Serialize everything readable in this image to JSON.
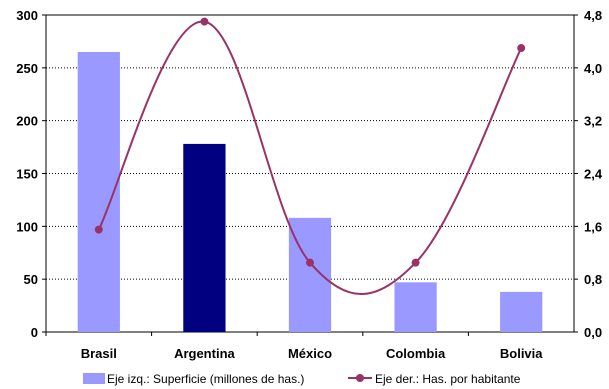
{
  "chart_data": {
    "type": "bar",
    "title": "",
    "categories": [
      "Brasil",
      "Argentina",
      "México",
      "Colombia",
      "Bolivia"
    ],
    "series": [
      {
        "name": "Eje izq.: Superficie (millones de has.)",
        "axis": "left",
        "type": "bar",
        "values": [
          265,
          178,
          108,
          47,
          38
        ],
        "color": "#9999ff",
        "highlight_color": "#000080",
        "highlight_index": 1
      },
      {
        "name": "Eje der.: Has. por habitante",
        "axis": "right",
        "type": "line",
        "smooth": true,
        "values": [
          1.55,
          4.7,
          1.05,
          1.05,
          4.3
        ],
        "color": "#993366"
      }
    ],
    "y_left": {
      "min": 0,
      "max": 300,
      "step": 50,
      "ticks": [
        "0",
        "50",
        "100",
        "150",
        "200",
        "250",
        "300"
      ]
    },
    "y_right": {
      "min": 0,
      "max": 4.8,
      "step": 0.8,
      "ticks": [
        "0,0",
        "0,8",
        "1,6",
        "2,4",
        "3,2",
        "4,0",
        "4,8"
      ]
    },
    "grid": "horizontal-dotted",
    "legend_placement": "bottom"
  }
}
